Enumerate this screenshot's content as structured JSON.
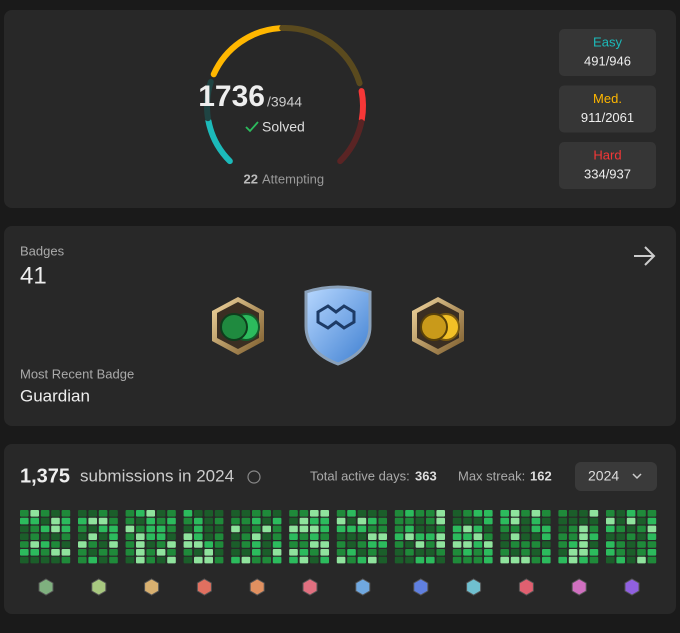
{
  "solved": {
    "count": "1736",
    "total": "/3944",
    "label": "Solved",
    "attempting_count": "22",
    "attempting_label": "Attempting"
  },
  "difficulty": [
    {
      "name": "Easy",
      "value": "491/946"
    },
    {
      "name": "Med.",
      "value": "911/2061"
    },
    {
      "name": "Hard",
      "value": "334/937"
    }
  ],
  "badges": {
    "title": "Badges",
    "count": "41",
    "recent_title": "Most Recent Badge",
    "recent_name": "Guardian"
  },
  "submissions": {
    "count": "1,375",
    "label": "submissions in 2024",
    "active_label": "Total active days:",
    "active_value": "363",
    "streak_label": "Max streak:",
    "streak_value": "162",
    "year": "2024"
  }
}
